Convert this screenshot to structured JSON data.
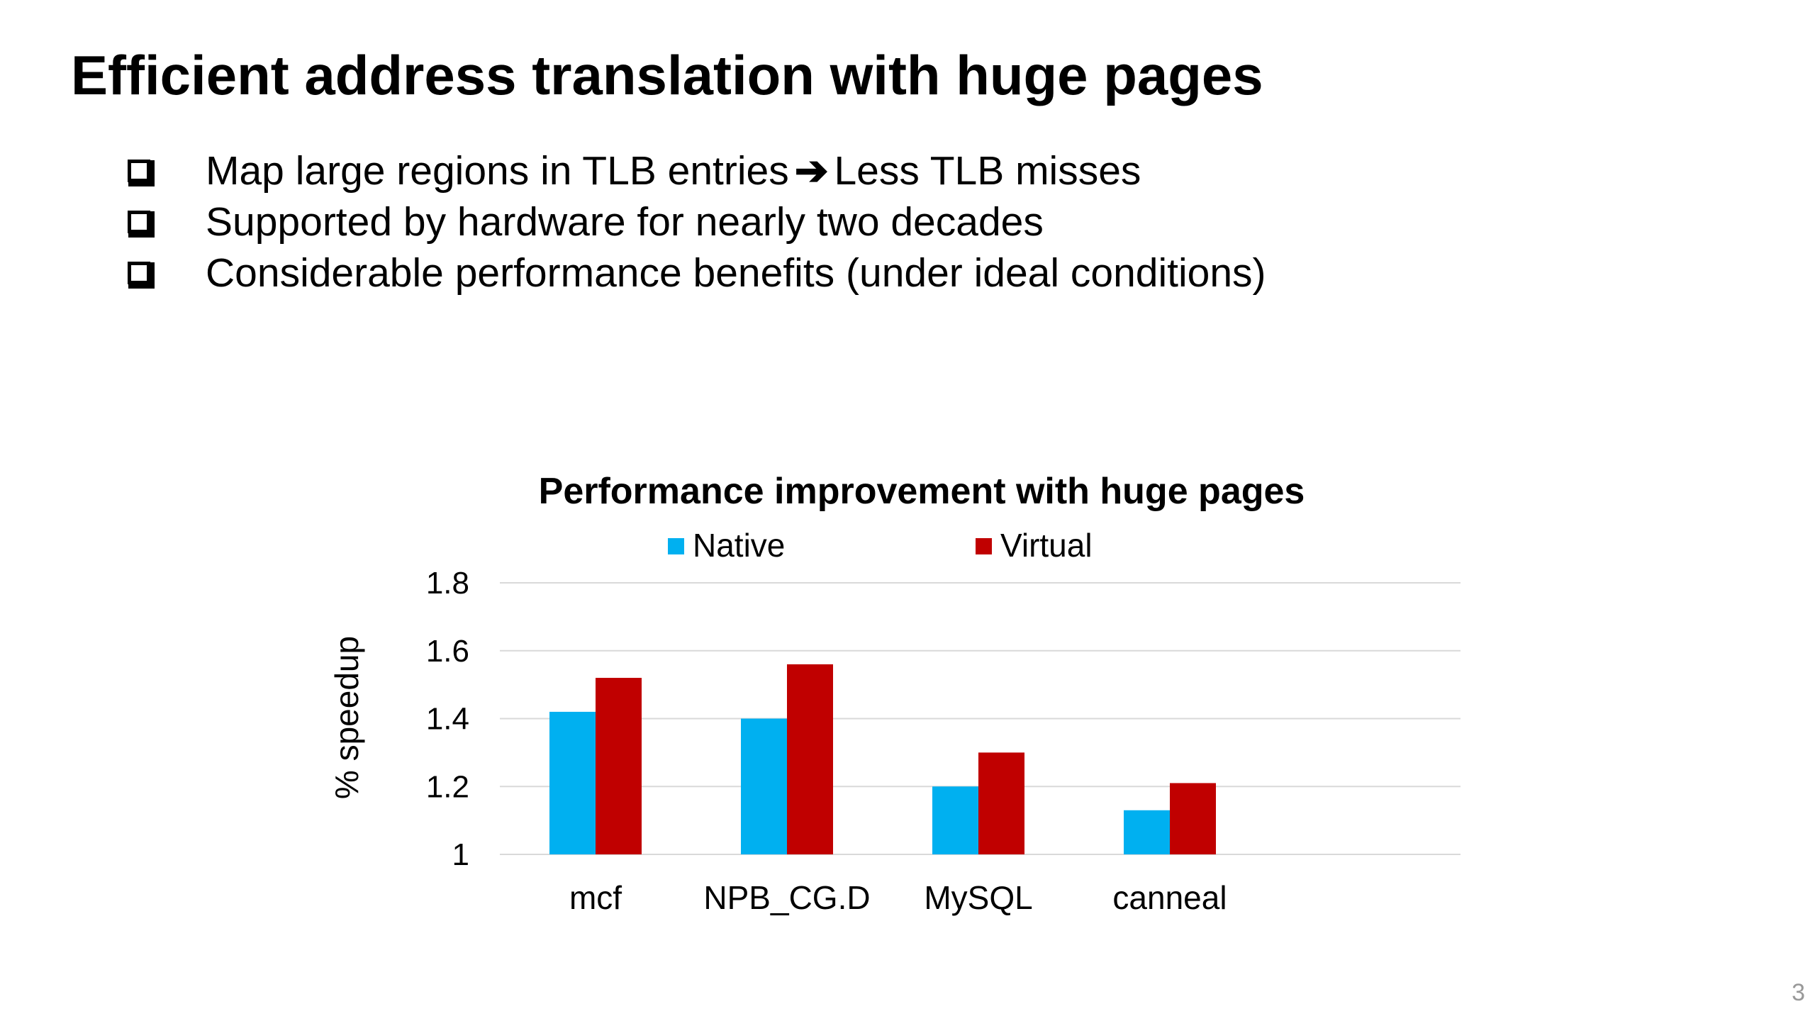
{
  "slide": {
    "title": "Efficient address translation with huge pages",
    "bullets": [
      {
        "text_before": "Map large regions in TLB entries",
        "arrow": "➔",
        "text_after": "Less TLB misses"
      },
      {
        "text": "Supported by hardware for nearly two decades"
      },
      {
        "text": "Considerable performance benefits (under ideal conditions)"
      }
    ],
    "page_number": "3",
    "bullet_icon": "hollow-square-checkbox-icon"
  },
  "chart_data": {
    "type": "bar",
    "title": "Performance improvement with huge pages",
    "xlabel": "",
    "ylabel": "% speedup",
    "categories": [
      "mcf",
      "NPB_CG.D",
      "MySQL",
      "canneal"
    ],
    "series": [
      {
        "name": "Native",
        "color": "#00b0f0",
        "values": [
          1.42,
          1.4,
          1.2,
          1.13
        ]
      },
      {
        "name": "Virtual",
        "color": "#c00000",
        "values": [
          1.52,
          1.56,
          1.3,
          1.21
        ]
      }
    ],
    "ylim": [
      1,
      1.8
    ],
    "yticks": [
      "1",
      "1.2",
      "1.4",
      "1.6",
      "1.8"
    ],
    "ytick_values": [
      1,
      1.2,
      1.4,
      1.6,
      1.8
    ],
    "grid": true,
    "gridline_color": "#d9d9d9",
    "legend": "top"
  }
}
